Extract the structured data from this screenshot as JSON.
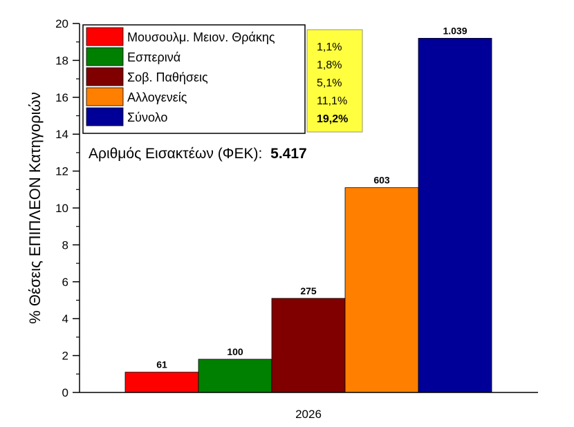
{
  "chart_data": {
    "type": "bar",
    "categories": [
      "2026"
    ],
    "ylabel": "% Θέσεις ΕΠΙΠΛΕΟΝ Κατηγοριών",
    "xlabel": "",
    "ylim": [
      0,
      20
    ],
    "yticks": [
      0,
      2,
      4,
      6,
      8,
      10,
      12,
      14,
      16,
      18,
      20
    ],
    "grid": false,
    "legend_position": "top-left",
    "series": [
      {
        "name": "Μουσουλμ. Μειον. Θράκης",
        "values": [
          1.1
        ],
        "count": "61",
        "percent_label": "1,1%",
        "color": "#ff0000"
      },
      {
        "name": "Εσπερινά",
        "values": [
          1.8
        ],
        "count": "100",
        "percent_label": "1,8%",
        "color": "#008000"
      },
      {
        "name": "Σοβ. Παθήσεις",
        "values": [
          5.1
        ],
        "count": "275",
        "percent_label": "5,1%",
        "color": "#800000"
      },
      {
        "name": "Αλλογενείς",
        "values": [
          11.1
        ],
        "count": "603",
        "percent_label": "11,1%",
        "color": "#ff8000"
      },
      {
        "name": "Σύνολο",
        "values": [
          19.2
        ],
        "count": "1.039",
        "percent_label": "19,2%",
        "color": "#000099"
      }
    ],
    "annotation": {
      "text": "Αριθμός Εισακτέων (ΦΕΚ):",
      "value": "5.417"
    },
    "percent_box_color": "#ffff40"
  }
}
